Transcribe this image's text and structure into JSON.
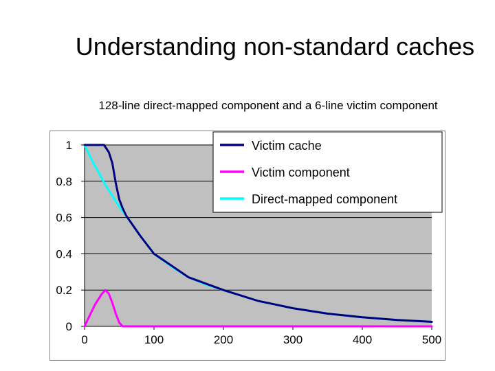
{
  "title": "Understanding non-standard caches",
  "subtitle": "128-line direct-mapped component and a 6-line victim component",
  "chart_data": {
    "type": "line",
    "title": "",
    "xlabel": "",
    "ylabel": "",
    "xlim": [
      0,
      500
    ],
    "ylim": [
      0,
      1
    ],
    "x_ticks": [
      0,
      100,
      200,
      300,
      400,
      500
    ],
    "y_ticks": [
      0,
      0.2,
      0.4,
      0.6,
      0.8,
      1
    ],
    "grid": "horizontal",
    "plot_background": "#c0c0c0",
    "legend_position": "top-right",
    "series": [
      {
        "name": "Victim cache",
        "color": "#000080",
        "x": [
          0,
          10,
          20,
          28,
          35,
          40,
          45,
          50,
          55,
          60,
          80,
          100,
          150,
          200,
          250,
          300,
          350,
          400,
          450,
          500
        ],
        "y": [
          1,
          1,
          1,
          1,
          0.96,
          0.9,
          0.79,
          0.7,
          0.65,
          0.61,
          0.5,
          0.4,
          0.27,
          0.2,
          0.14,
          0.1,
          0.07,
          0.05,
          0.035,
          0.025
        ]
      },
      {
        "name": "Victim component",
        "color": "#ff00ff",
        "x": [
          0,
          5,
          10,
          15,
          20,
          25,
          30,
          35,
          40,
          45,
          50,
          55,
          60,
          100,
          200,
          300,
          400,
          500
        ],
        "y": [
          0,
          0.04,
          0.08,
          0.12,
          0.15,
          0.18,
          0.2,
          0.18,
          0.13,
          0.07,
          0.02,
          0,
          0,
          0,
          0,
          0,
          0,
          0
        ]
      },
      {
        "name": "Direct-mapped component",
        "color": "#00ffff",
        "x": [
          0,
          10,
          20,
          30,
          40,
          50,
          60,
          80,
          100,
          125,
          150,
          175,
          200,
          250,
          300,
          350,
          400,
          450,
          500
        ],
        "y": [
          1,
          0.92,
          0.85,
          0.78,
          0.72,
          0.66,
          0.61,
          0.5,
          0.4,
          0.33,
          0.27,
          0.23,
          0.2,
          0.14,
          0.1,
          0.07,
          0.05,
          0.035,
          0.025
        ]
      }
    ]
  }
}
